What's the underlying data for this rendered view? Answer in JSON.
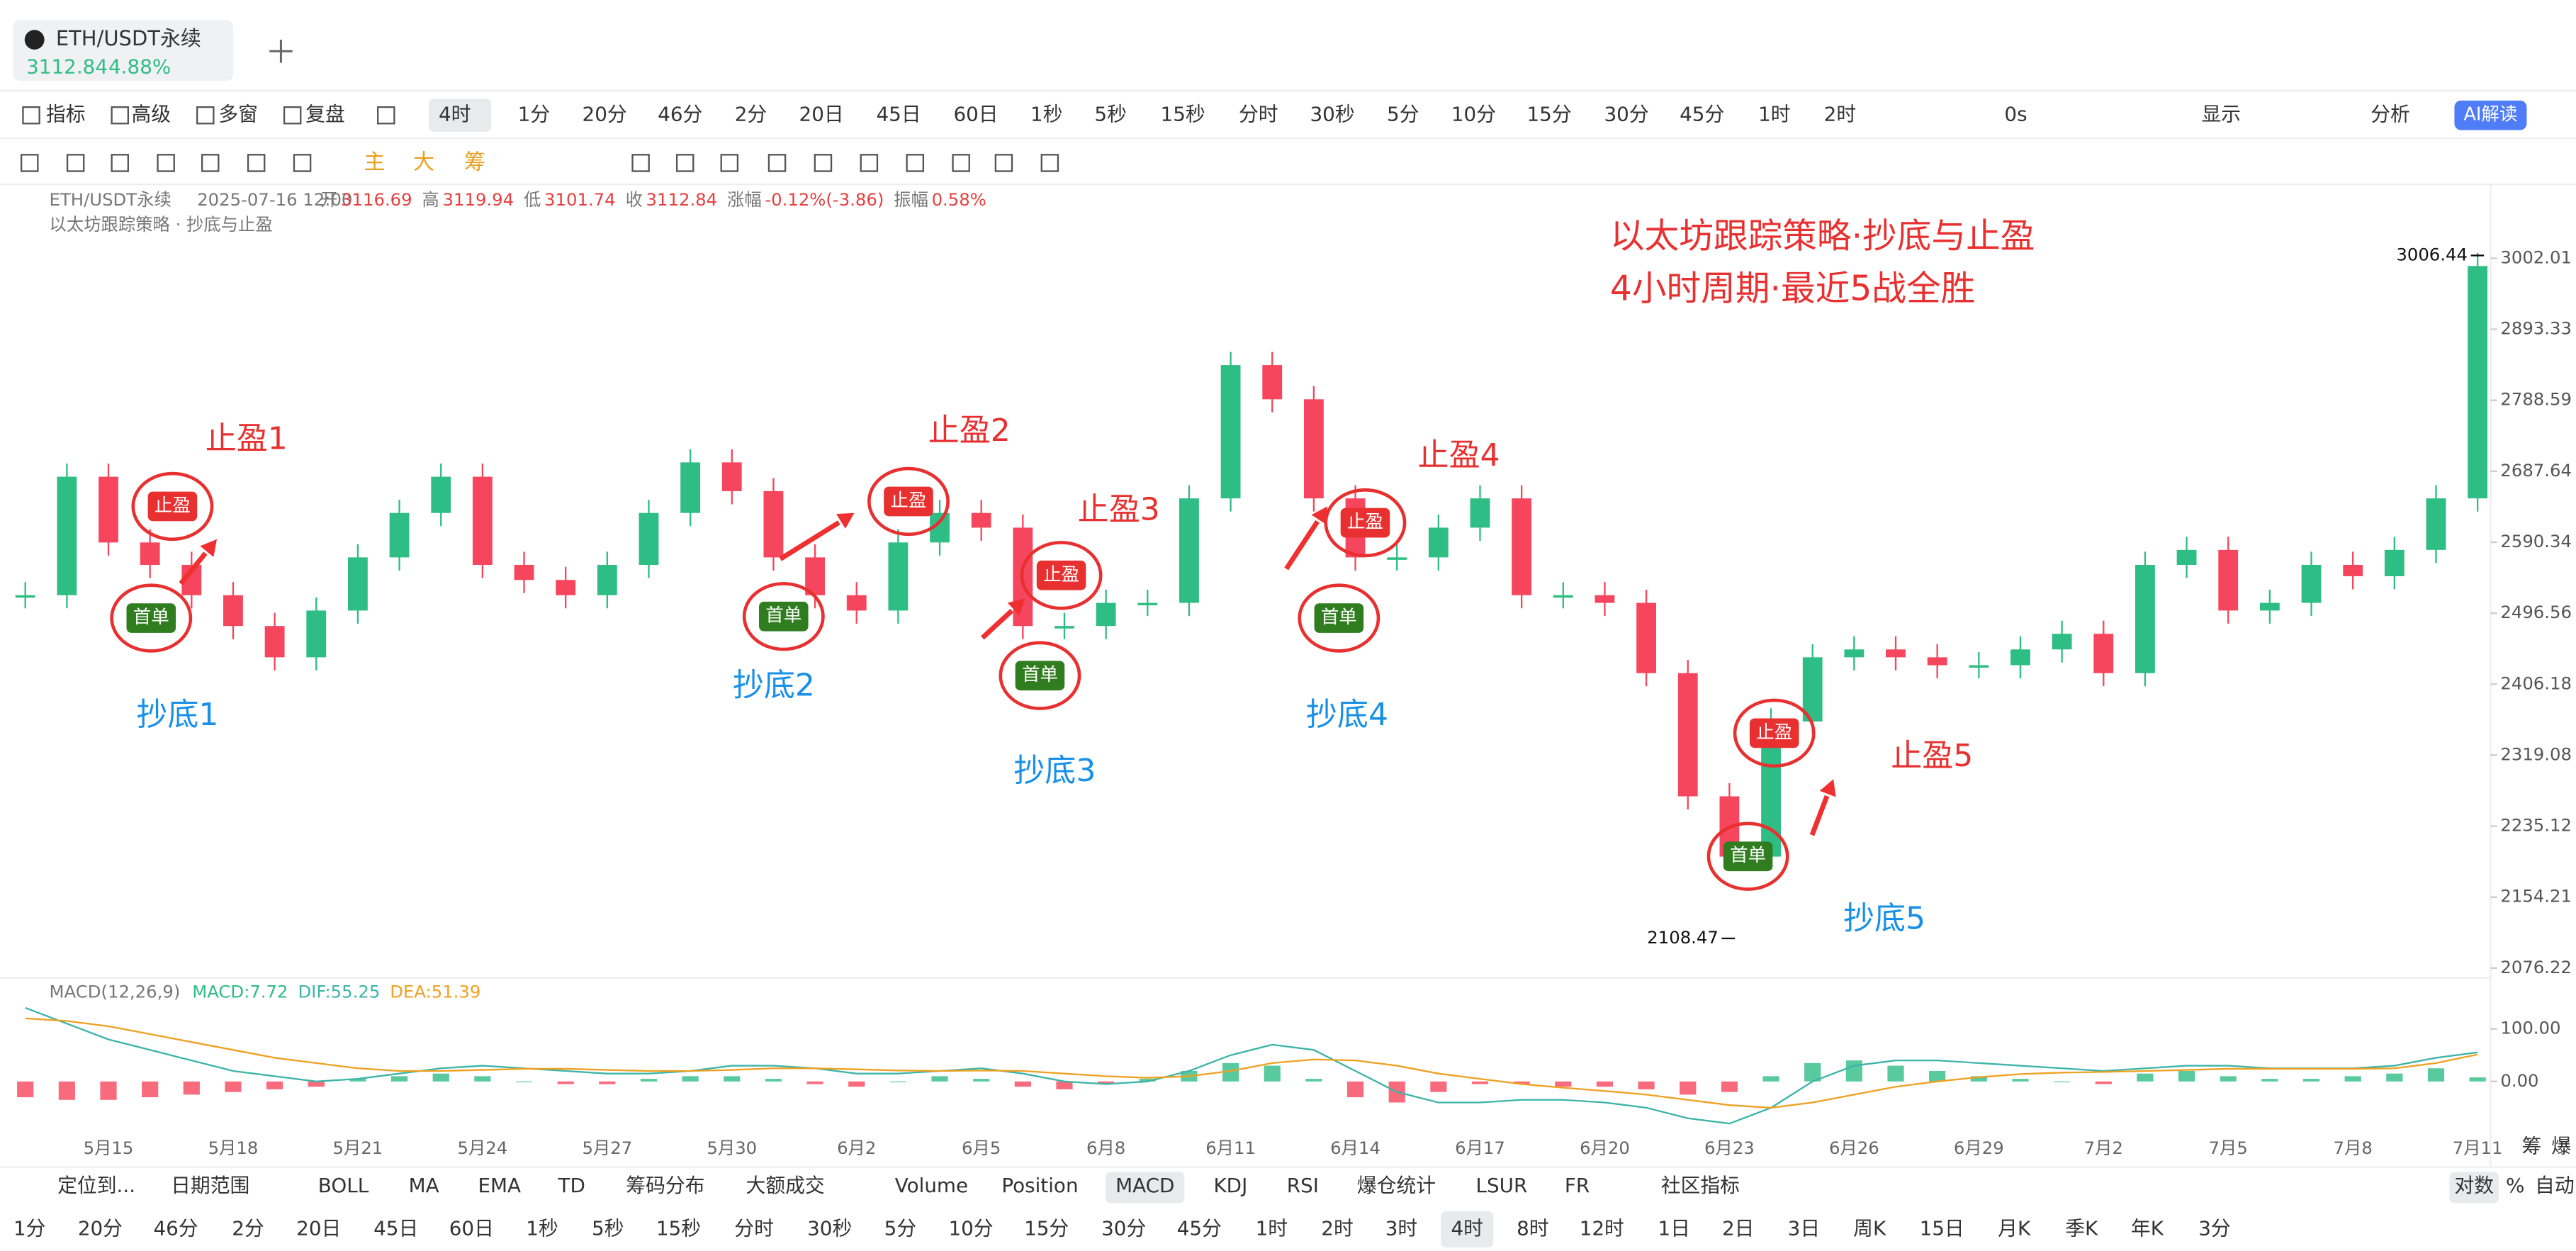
{
  "tab": {
    "symbol": "ETH/USDT永续",
    "price": "3112.84",
    "change": "4.88%"
  },
  "toolbar": {
    "tools": [
      "指标",
      "高级",
      "多窗",
      "复盘"
    ],
    "interval": "4时",
    "intervals": [
      "1分",
      "20分",
      "46分",
      "2分",
      "20日",
      "45日",
      "60日",
      "1秒",
      "5秒",
      "15秒",
      "分时",
      "30秒",
      "5分",
      "10分",
      "15分",
      "30分",
      "45分",
      "1时",
      "2时"
    ],
    "right": [
      "0s",
      "显示",
      "分析"
    ],
    "ai": "AI解读"
  },
  "drawbar": {
    "chips": [
      "主",
      "大",
      "筹"
    ]
  },
  "info": {
    "symbol": "ETH/USDT永续",
    "time": "2025-07-16 12:00",
    "fields": [
      {
        "label": "开",
        "value": "3116.69"
      },
      {
        "label": "高",
        "value": "3119.94"
      },
      {
        "label": "低",
        "value": "3101.74"
      },
      {
        "label": "收",
        "value": "3112.84"
      },
      {
        "label": "涨幅",
        "value": "-0.12%(-3.86)"
      },
      {
        "label": "振幅",
        "value": "0.58%"
      }
    ],
    "indicator": "以太坊跟踪策略 · 抄底与止盈"
  },
  "strategy": {
    "title": "以太坊跟踪策略·抄底与止盈",
    "subtitle": "4小时周期·最近5战全胜",
    "take_profit": [
      "止盈1",
      "止盈2",
      "止盈3",
      "止盈4",
      "止盈5"
    ],
    "bottom": [
      "抄底1",
      "抄底2",
      "抄底3",
      "抄底4",
      "抄底5"
    ],
    "badge_tp": "止盈",
    "badge_entry": "首单"
  },
  "chart_data": [
    {
      "type": "candlestick",
      "categories": [
        null,
        null,
        "5月15",
        null,
        null,
        "5月18",
        null,
        null,
        "5月21",
        null,
        null,
        "5月24",
        null,
        null,
        "5月27",
        null,
        null,
        "5月30",
        null,
        null,
        "6月2",
        null,
        null,
        "6月5",
        null,
        null,
        "6月8",
        null,
        null,
        "6月11",
        null,
        null,
        "6月14",
        null,
        null,
        "6月17",
        null,
        null,
        "6月20",
        null,
        null,
        "6月23",
        null,
        null,
        "6月26",
        null,
        null,
        "6月29",
        null,
        null,
        "7月2",
        null,
        null,
        "7月5",
        null,
        null,
        "7月8",
        null,
        null,
        "7月11"
      ],
      "values": [
        2520,
        2680,
        2590,
        2560,
        2520,
        2480,
        2440,
        2500,
        2570,
        2630,
        2680,
        2560,
        2540,
        2520,
        2560,
        2630,
        2700,
        2660,
        2570,
        2520,
        2500,
        2590,
        2630,
        2610,
        2480,
        2480,
        2510,
        2510,
        2650,
        2840,
        2790,
        2650,
        2570,
        2570,
        2610,
        2650,
        2520,
        2520,
        2510,
        2420,
        2270,
        2200,
        2360,
        2440,
        2450,
        2440,
        2430,
        2430,
        2450,
        2470,
        2420,
        2560,
        2580,
        2500,
        2510,
        2560,
        2545,
        2580,
        2650,
        2990
      ],
      "ylim": [
        2065.6,
        3077.3
      ],
      "log": true,
      "yticks": [
        3002.01,
        2893.33,
        2788.59,
        2687.64,
        2590.34,
        2496.56,
        2406.18,
        2319.08,
        2235.12,
        2154.21,
        2076.22
      ],
      "up_color": "#2ebd85",
      "down_color": "#f6465d",
      "high_marker": 3006.44,
      "low_marker": 2108.47
    },
    {
      "type": "macd",
      "title": "MACD(12,26,9)",
      "ylim": [
        -100,
        143.75
      ],
      "yticks": [
        {
          "value": 100,
          "label": "100.00"
        },
        {
          "value": 0,
          "label": "0.00"
        }
      ],
      "series": [
        {
          "name": "MACD:7.72",
          "color": "#2ebd85",
          "values": [
            -30,
            -35,
            -35,
            -30,
            -25,
            -20,
            -15,
            -10,
            5,
            10,
            15,
            10,
            0,
            -5,
            -5,
            5,
            10,
            10,
            5,
            -5,
            -10,
            0,
            10,
            5,
            -10,
            -15,
            -5,
            5,
            20,
            35,
            30,
            5,
            -30,
            -40,
            -20,
            -5,
            -5,
            -10,
            -10,
            -15,
            -25,
            -20,
            10,
            35,
            40,
            30,
            20,
            10,
            5,
            0,
            -5,
            15,
            20,
            10,
            5,
            5,
            10,
            15,
            25,
            7.72
          ]
        },
        {
          "name": "DIF:55.25",
          "color": "#3cb4a8",
          "values": [
            140,
            110,
            80,
            60,
            40,
            20,
            10,
            0,
            5,
            15,
            25,
            30,
            25,
            20,
            15,
            15,
            20,
            30,
            30,
            25,
            15,
            15,
            20,
            25,
            15,
            0,
            -5,
            0,
            20,
            50,
            70,
            60,
            20,
            -20,
            -40,
            -40,
            -35,
            -35,
            -40,
            -50,
            -70,
            -80,
            -50,
            0,
            30,
            40,
            40,
            35,
            30,
            25,
            20,
            25,
            30,
            30,
            25,
            25,
            25,
            30,
            45,
            55.25
          ]
        },
        {
          "name": "DEA:51.39",
          "color": "#f0a020",
          "values": [
            120,
            115,
            105,
            90,
            75,
            60,
            45,
            35,
            25,
            20,
            20,
            22,
            24,
            24,
            22,
            20,
            20,
            22,
            25,
            25,
            23,
            21,
            20,
            21,
            20,
            15,
            10,
            7,
            10,
            20,
            35,
            42,
            40,
            30,
            15,
            5,
            -5,
            -12,
            -18,
            -25,
            -35,
            -45,
            -50,
            -40,
            -25,
            -10,
            0,
            8,
            14,
            17,
            18,
            20,
            22,
            24,
            24,
            24,
            24,
            25,
            35,
            51.39
          ]
        }
      ]
    }
  ],
  "bottom": {
    "locate": "定位到...",
    "range": "日期范围",
    "indicators": [
      "BOLL",
      "MA",
      "EMA",
      "TD",
      "筹码分布",
      "大额成交",
      "Volume",
      "Position",
      "MACD",
      "KDJ",
      "RSI",
      "爆仓统计",
      "LSUR",
      "FR",
      "社区指标"
    ],
    "scale": [
      "对数",
      "%",
      "自动"
    ],
    "side": [
      "筹",
      "爆"
    ],
    "intervals": [
      "1分",
      "20分",
      "46分",
      "2分",
      "20日",
      "45日",
      "60日",
      "1秒",
      "5秒",
      "15秒",
      "分时",
      "30秒",
      "5分",
      "10分",
      "15分",
      "30分",
      "45分",
      "1时",
      "2时",
      "3时",
      "4时",
      "8时",
      "12时",
      "1日",
      "2日",
      "3日",
      "周K",
      "15日",
      "月K",
      "季K",
      "年K",
      "3分"
    ]
  }
}
